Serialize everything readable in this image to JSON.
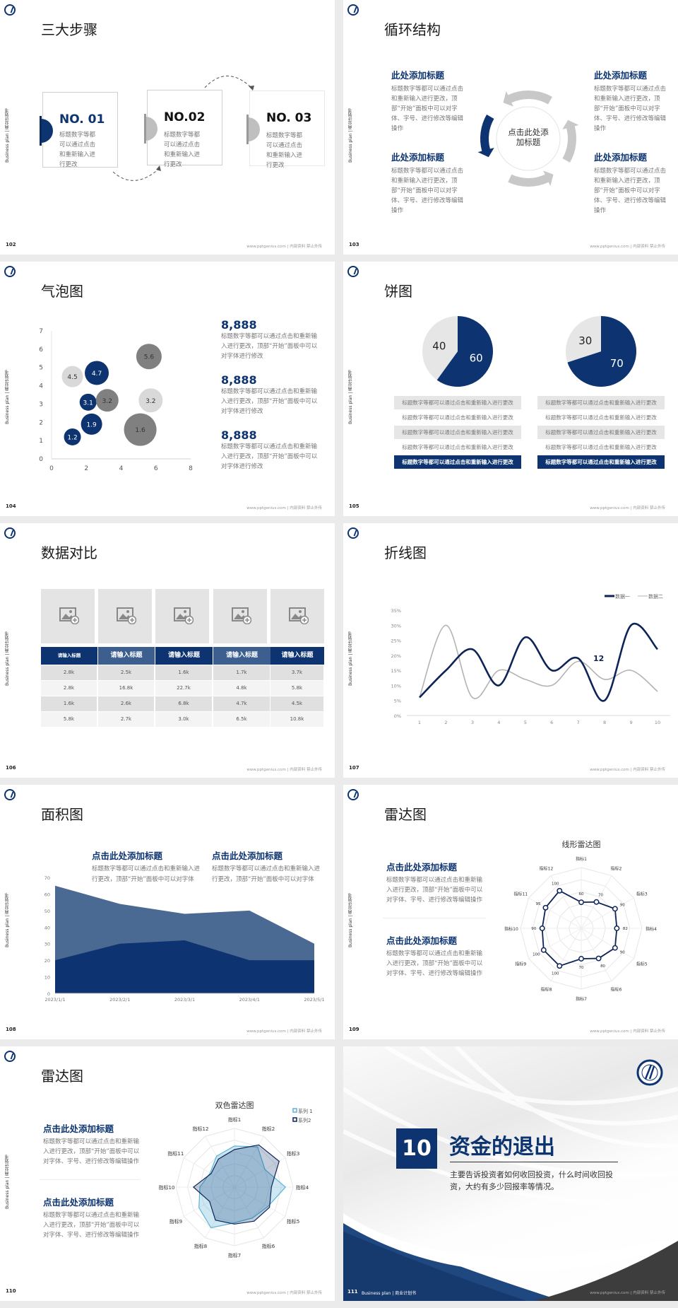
{
  "common": {
    "sidebar": "Business plan | 商业计划书",
    "footer": "www.pptgenius.com | 内部资料 禁止外传",
    "colors": {
      "navy": "#0d3470",
      "gray": "#808080",
      "light_gray": "#d9d9d9",
      "cyan": "#5ab4d6"
    }
  },
  "s102": {
    "page": "102",
    "title": "三大步骤",
    "steps": [
      {
        "no": "NO. 01",
        "desc": "标题数字等都可以通过点击和重新输入进行更改",
        "accent": "#0d3470"
      },
      {
        "no": "NO.02",
        "desc": "标题数字等都可以通过点击和重新输入进行更改",
        "accent": "#bfbfbf"
      },
      {
        "no": "NO. 03",
        "desc": "标题数字等都可以通过点击和重新输入进行更改",
        "accent": "#bfbfbf"
      }
    ]
  },
  "s103": {
    "page": "103",
    "title": "循环结构",
    "center": "点击此处添加标题",
    "blocks": [
      {
        "heading": "此处添加标题",
        "body": "标题数字等都可以通过点击和重新输入进行更改，顶部“开始”面板中可以对字体、字号、进行修改等编辑操作"
      },
      {
        "heading": "此处添加标题",
        "body": "标题数字等都可以通过点击和重新输入进行更改，顶部“开始”面板中可以对字体、字号、进行修改等编辑操作"
      },
      {
        "heading": "此处添加标题",
        "body": "标题数字等都可以通过点击和重新输入进行更改，顶部“开始”面板中可以对字体、字号、进行修改等编辑操作"
      },
      {
        "heading": "此处添加标题",
        "body": "标题数字等都可以通过点击和重新输入进行更改，顶部“开始”面板中可以对字体、字号、进行修改等编辑操作"
      }
    ]
  },
  "s104": {
    "page": "104",
    "title": "气泡图",
    "stats": [
      {
        "value": "8,888",
        "body": "标题数字等都可以通过点击和重新输入进行更改，顶部“开始”面板中可以对字体进行修改"
      },
      {
        "value": "8,888",
        "body": "标题数字等都可以通过点击和重新输入进行更改，顶部“开始”面板中可以对字体进行修改"
      },
      {
        "value": "8,888",
        "body": "标题数字等都可以通过点击和重新输入进行更改，顶部“开始”面板中可以对字体进行修改"
      }
    ]
  },
  "s105": {
    "page": "105",
    "title": "饼图",
    "rows": [
      "标题数字等都可以通过点击和重新输入进行更改",
      "标题数字等都可以通过点击和重新输入进行更改",
      "标题数字等都可以通过点击和重新输入进行更改",
      "标题数字等都可以通过点击和重新输入进行更改",
      "标题数字等都可以通过点击和重新输入进行更改"
    ]
  },
  "s106": {
    "page": "106",
    "title": "数据对比",
    "headers": [
      "请输入标题",
      "请输入标题",
      "请输入标题",
      "请输入标题",
      "请输入标题"
    ],
    "rows": [
      [
        "2.8k",
        "2.5k",
        "1.6k",
        "1.7k",
        "3.7k"
      ],
      [
        "2.8k",
        "16.8k",
        "22.7k",
        "4.8k",
        "5.8k"
      ],
      [
        "1.6k",
        "2.6k",
        "6.8k",
        "4.7k",
        "4.5k"
      ],
      [
        "5.8k",
        "2.7k",
        "3.0k",
        "6.5k",
        "10.8k"
      ]
    ]
  },
  "s107": {
    "page": "107",
    "title": "折线图",
    "annotation": "12"
  },
  "s108": {
    "page": "108",
    "title": "面积图",
    "blocks": [
      {
        "heading": "点击此处添加标题",
        "body": "标题数字等都可以通过点击和重新输入进行更改，顶部“开始”面板中可以对字体"
      },
      {
        "heading": "点击此处添加标题",
        "body": "标题数字等都可以通过点击和重新输入进行更改，顶部“开始”面板中可以对字体"
      }
    ]
  },
  "s109": {
    "page": "109",
    "title": "雷达图",
    "blocks": [
      {
        "heading": "点击此处添加标题",
        "body": "标题数字等都可以通过点击和重新输入进行更改，顶部“开始”面板中可以对字体、字号、进行修改等编辑操作"
      },
      {
        "heading": "点击此处添加标题",
        "body": "标题数字等都可以通过点击和重新输入进行更改，顶部“开始”面板中可以对字体、字号、进行修改等编辑操作"
      }
    ]
  },
  "s110": {
    "page": "110",
    "title": "雷达图",
    "blocks": [
      {
        "heading": "点击此处添加标题",
        "body": "标题数字等都可以通过点击和重新输入进行更改，顶部“开始”面板中可以对字体、字号、进行修改等编辑操作"
      },
      {
        "heading": "点击此处添加标题",
        "body": "标题数字等都可以通过点击和重新输入进行更改，顶部“开始”面板中可以对字体、字号、进行修改等编辑操作"
      }
    ]
  },
  "s111": {
    "page": "111",
    "number": "10",
    "title": "资金的退出",
    "body": "主要告诉投资者如何收回投资，什么时间收回投资，大约有多少回报率等情况。",
    "footer_left": "Business plan | 商业计划书"
  },
  "chart_data": [
    {
      "id": "bubble",
      "type": "scatter",
      "xlim": [
        0,
        8
      ],
      "ylim": [
        0,
        7
      ],
      "xticks": [
        "0",
        "2",
        "4",
        "6",
        "8"
      ],
      "yticks": [
        "0",
        "1",
        "2",
        "3",
        "4",
        "5",
        "6",
        "7"
      ],
      "points": [
        {
          "x": 1.2,
          "y": 1.2,
          "size": 12,
          "label": "1.2",
          "color": "#0d3470"
        },
        {
          "x": 2.3,
          "y": 1.9,
          "size": 15,
          "label": "1.9",
          "color": "#0d3470"
        },
        {
          "x": 2.1,
          "y": 3.1,
          "size": 12,
          "label": "3.1",
          "color": "#0d3470"
        },
        {
          "x": 3.2,
          "y": 3.2,
          "size": 16,
          "label": "3.2",
          "color": "#808080"
        },
        {
          "x": 1.2,
          "y": 4.5,
          "size": 15,
          "label": "4.5",
          "color": "#d9d9d9"
        },
        {
          "x": 2.6,
          "y": 4.7,
          "size": 17,
          "label": "4.7",
          "color": "#0d3470"
        },
        {
          "x": 5.6,
          "y": 5.6,
          "size": 18,
          "label": "5.6",
          "color": "#808080"
        },
        {
          "x": 5.7,
          "y": 3.2,
          "size": 17,
          "label": "3.2",
          "color": "#d9d9d9"
        },
        {
          "x": 5.1,
          "y": 1.6,
          "size": 23,
          "label": "1.6",
          "color": "#808080"
        }
      ]
    },
    {
      "id": "pie1",
      "type": "pie",
      "values": [
        60,
        40
      ],
      "labels": [
        "60",
        "40"
      ],
      "colors": [
        "#0d3470",
        "#e6e6e6"
      ]
    },
    {
      "id": "pie2",
      "type": "pie",
      "values": [
        70,
        30
      ],
      "labels": [
        "70",
        "30"
      ],
      "colors": [
        "#0d3470",
        "#e6e6e6"
      ]
    },
    {
      "id": "line",
      "type": "line",
      "categories": [
        "1",
        "2",
        "3",
        "4",
        "5",
        "6",
        "7",
        "8",
        "9",
        "10"
      ],
      "ylim": [
        0,
        35
      ],
      "yticks": [
        "0%",
        "5%",
        "10%",
        "15%",
        "20%",
        "25%",
        "30%",
        "35%"
      ],
      "legend": "top-right",
      "series": [
        {
          "name": "数据一",
          "values": [
            6,
            15,
            22,
            10,
            26,
            15,
            19,
            5,
            30,
            22
          ],
          "color": "#0d2458"
        },
        {
          "name": "数据二",
          "values": [
            6,
            30,
            6,
            15,
            12,
            10,
            18,
            12,
            15,
            8
          ],
          "color": "#b3b3b3"
        }
      ]
    },
    {
      "id": "area",
      "type": "area",
      "categories": [
        "2023/1/1",
        "2023/2/1",
        "2023/3/1",
        "2023/4/1",
        "2023/5/1"
      ],
      "ylim": [
        0,
        70
      ],
      "yticks": [
        "0",
        "10",
        "20",
        "30",
        "40",
        "50",
        "60",
        "70"
      ],
      "series": [
        {
          "values": [
            65,
            54,
            48,
            50,
            30
          ],
          "color": "#4a6a94"
        },
        {
          "values": [
            20,
            30,
            32,
            20,
            20
          ],
          "color": "#0d3470"
        }
      ]
    },
    {
      "id": "radar1",
      "type": "radar",
      "title": "线形雷达图",
      "rmax": 140,
      "axes": [
        "指标1",
        "指标2",
        "指标3",
        "指标4",
        "指标5",
        "指标6",
        "指标7",
        "指标8",
        "指标9",
        "指标10",
        "指标11",
        "指标12"
      ],
      "series": [
        {
          "values": [
            60,
            70,
            90,
            82,
            90,
            80,
            70,
            100,
            100,
            90,
            95,
            100
          ],
          "color": "#0d2458"
        }
      ]
    },
    {
      "id": "radar2",
      "type": "radar",
      "title": "双色雷达图",
      "rmax": 100,
      "legend": "top-right",
      "axes": [
        "指标1",
        "指标2",
        "指标3",
        "指标4",
        "指标5",
        "指标6",
        "指标7",
        "指标8",
        "指标9",
        "指标10",
        "指标11",
        "指标12"
      ],
      "series": [
        {
          "name": "系列 1",
          "values": [
            70,
            79,
            60,
            87,
            66,
            61,
            61,
            80,
            70,
            59,
            48,
            61
          ],
          "color": "#5ab4d6"
        },
        {
          "name": "系列2",
          "values": [
            64,
            83,
            88,
            63,
            69,
            67,
            63,
            65,
            49,
            70,
            46,
            55
          ],
          "color": "#0d2458"
        }
      ]
    }
  ]
}
